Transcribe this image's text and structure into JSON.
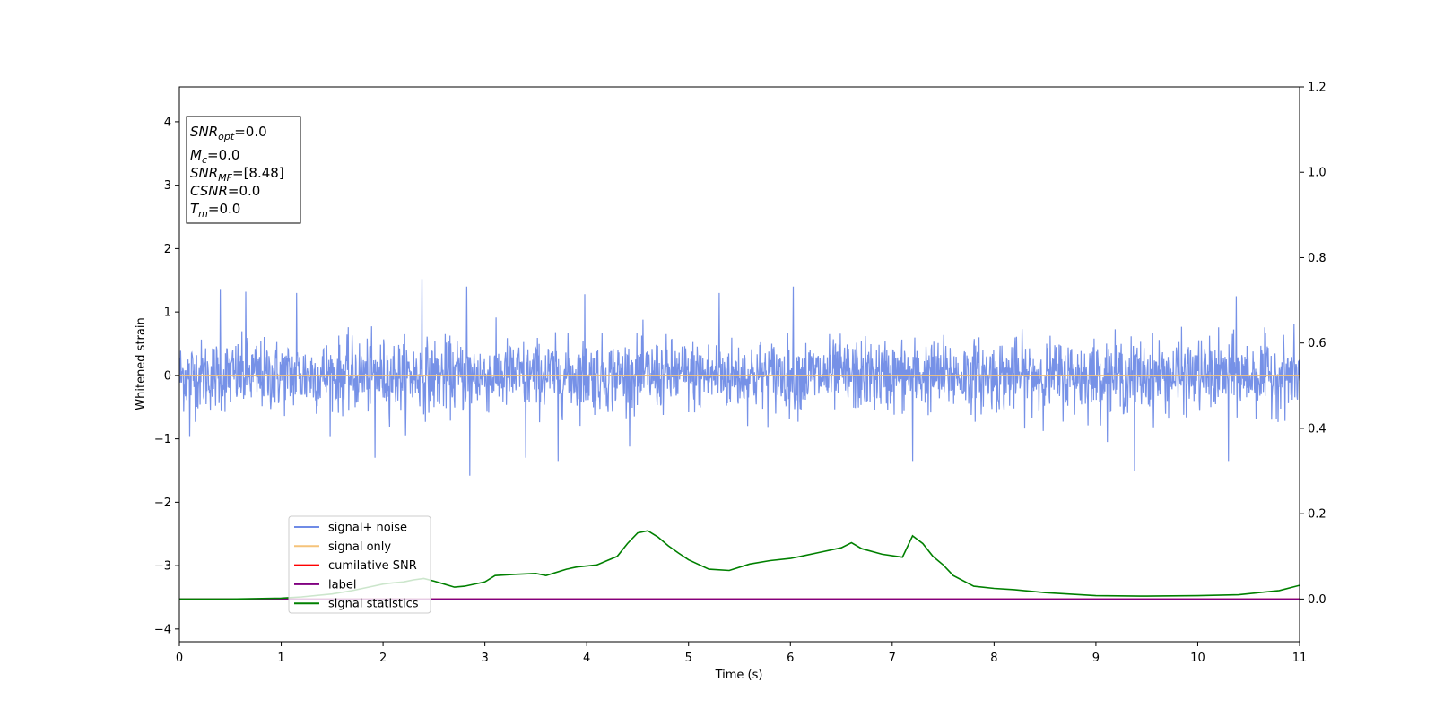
{
  "chart_data": {
    "type": "line",
    "xlabel": "Time (s)",
    "ylabel": "Whitened strain",
    "xlim": [
      0,
      11
    ],
    "ylim_left": [
      -4.2,
      4.55
    ],
    "ylim_right": [
      -0.1,
      1.2
    ],
    "x_ticks": [
      "0",
      "1",
      "2",
      "3",
      "4",
      "5",
      "6",
      "7",
      "8",
      "9",
      "10",
      "11"
    ],
    "x_tick_values": [
      0,
      1,
      2,
      3,
      4,
      5,
      6,
      7,
      8,
      9,
      10,
      11
    ],
    "y_left_ticks": [
      "−4",
      "−3",
      "−2",
      "−1",
      "0",
      "1",
      "2",
      "3",
      "4"
    ],
    "y_left_tick_values": [
      -4,
      -3,
      -2,
      -1,
      0,
      1,
      2,
      3,
      4
    ],
    "y_right_ticks": [
      "0.0",
      "0.2",
      "0.4",
      "0.6",
      "0.8",
      "1.0",
      "1.2"
    ],
    "y_right_tick_values": [
      0,
      0.2,
      0.4,
      0.6,
      0.8,
      1.0,
      1.2
    ],
    "grid": false,
    "legend_placement": "lower-left",
    "info_box": {
      "snr_opt": {
        "base": "SNR",
        "sub": "opt",
        "value": "=0.0"
      },
      "mc": {
        "base": "M",
        "sub": "c",
        "value": "=0.0"
      },
      "snr_mf": {
        "base": "SNR",
        "sub": "MF",
        "value": "=[8.48]"
      },
      "csnr": {
        "base": "CSNR",
        "sub": "",
        "value": "=0.0"
      },
      "tm": {
        "base": "T",
        "sub": "m",
        "value": "=0.0"
      }
    },
    "series": [
      {
        "name": "signal+ noise",
        "axis": "left",
        "color": "#6f8be6",
        "kind": "white-noise",
        "amplitude_typical": 0.45,
        "peaks": [
          {
            "x": 0.1,
            "y": -0.97
          },
          {
            "x": 0.4,
            "y": 1.35
          },
          {
            "x": 0.65,
            "y": 1.32
          },
          {
            "x": 1.15,
            "y": 1.3
          },
          {
            "x": 1.92,
            "y": -1.3
          },
          {
            "x": 2.38,
            "y": 1.52
          },
          {
            "x": 2.82,
            "y": 1.4
          },
          {
            "x": 2.85,
            "y": -1.58
          },
          {
            "x": 3.4,
            "y": -1.3
          },
          {
            "x": 3.72,
            "y": -1.35
          },
          {
            "x": 3.98,
            "y": 1.28
          },
          {
            "x": 5.3,
            "y": 1.3
          },
          {
            "x": 6.03,
            "y": 1.4
          },
          {
            "x": 7.2,
            "y": -1.35
          },
          {
            "x": 9.38,
            "y": -1.5
          },
          {
            "x": 10.3,
            "y": -1.35
          },
          {
            "x": 10.38,
            "y": 1.25
          }
        ]
      },
      {
        "name": "signal only",
        "axis": "left",
        "color": "#f5c37a",
        "x": [
          0,
          11
        ],
        "y": [
          0,
          0
        ]
      },
      {
        "name": "cumilative SNR",
        "axis": "right",
        "color": "#ff0000",
        "x": [
          0,
          11
        ],
        "y": [
          0,
          0
        ]
      },
      {
        "name": "label",
        "axis": "right",
        "color": "#800080",
        "x": [
          0,
          11
        ],
        "y": [
          0,
          0
        ]
      },
      {
        "name": "signal statistics",
        "axis": "right",
        "color": "#008000",
        "x": [
          0,
          0.5,
          1.0,
          1.2,
          1.5,
          1.7,
          1.9,
          2.0,
          2.1,
          2.2,
          2.3,
          2.4,
          2.5,
          2.6,
          2.7,
          2.8,
          3.0,
          3.1,
          3.3,
          3.5,
          3.6,
          3.8,
          3.9,
          4.1,
          4.2,
          4.3,
          4.4,
          4.5,
          4.6,
          4.7,
          4.8,
          4.9,
          5.0,
          5.2,
          5.4,
          5.6,
          5.8,
          6.0,
          6.1,
          6.3,
          6.5,
          6.6,
          6.7,
          6.9,
          7.1,
          7.2,
          7.3,
          7.4,
          7.5,
          7.6,
          7.8,
          8.0,
          8.2,
          8.5,
          9.0,
          9.5,
          10.0,
          10.4,
          10.6,
          10.8,
          11.0
        ],
        "y": [
          0.0,
          0.0,
          0.002,
          0.005,
          0.012,
          0.02,
          0.03,
          0.035,
          0.038,
          0.04,
          0.045,
          0.048,
          0.042,
          0.035,
          0.028,
          0.03,
          0.04,
          0.055,
          0.058,
          0.06,
          0.055,
          0.07,
          0.075,
          0.08,
          0.09,
          0.1,
          0.13,
          0.155,
          0.16,
          0.145,
          0.125,
          0.108,
          0.092,
          0.07,
          0.067,
          0.082,
          0.09,
          0.095,
          0.1,
          0.11,
          0.12,
          0.132,
          0.118,
          0.105,
          0.098,
          0.148,
          0.13,
          0.1,
          0.08,
          0.055,
          0.03,
          0.025,
          0.022,
          0.015,
          0.008,
          0.007,
          0.008,
          0.01,
          0.015,
          0.02,
          0.032
        ]
      }
    ]
  }
}
